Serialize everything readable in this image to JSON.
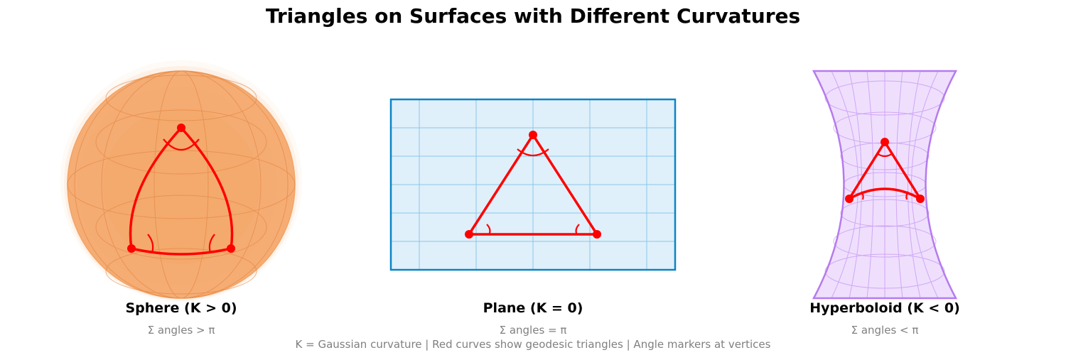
{
  "title": "Triangles on Surfaces with Different Curvatures",
  "panels": [
    {
      "title": "Sphere (K > 0)",
      "subtitle": "Σ angles > π"
    },
    {
      "title": "Plane (K = 0)",
      "subtitle": "Σ angles = π"
    },
    {
      "title": "Hyperboloid (K < 0)",
      "subtitle": "Σ angles < π"
    }
  ],
  "footnote": "K = Gaussian curvature | Red curves show geodesic triangles | Angle markers at vertices",
  "colors": {
    "triangle": "#ff0000",
    "sphere_fill": "#f4a261",
    "sphere_edge": "#e8893f",
    "plane_fill": "#dff0fb",
    "plane_edge": "#0a84c6",
    "plane_grid": "#8cc6e4",
    "hyperboloid_fill": "#efdffd",
    "hyperboloid_edge": "#b57bee"
  }
}
